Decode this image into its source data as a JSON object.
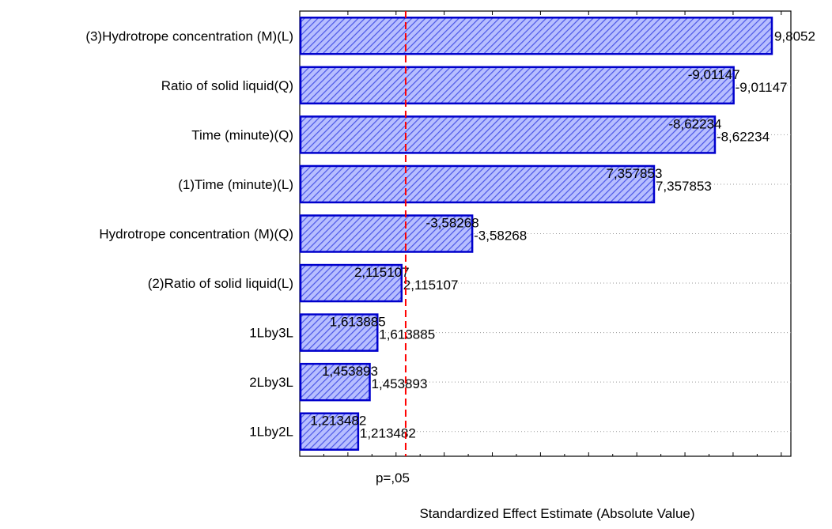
{
  "chart_data": {
    "type": "bar",
    "orientation": "horizontal",
    "title": "",
    "xlabel": "Standardized Effect Estimate (Absolute Value)",
    "ylabel": "",
    "xlim": [
      0,
      10.2
    ],
    "grid": true,
    "legend": "none",
    "bar_color": "#0000cc",
    "bar_fill_color": "#9fa8ff",
    "threshold": {
      "label": "p=,05",
      "value": 2.2,
      "color": "#ff0000"
    },
    "categories": [
      "(3)Hydrotrope concentration (M)(L)",
      "Ratio of solid liquid(Q)",
      "Time (minute)(Q)",
      "(1)Time (minute)(L)",
      "Hydrotrope concentration (M)(Q)",
      "(2)Ratio of solid liquid(L)",
      "1Lby3L",
      "2Lby3L",
      "1Lby2L"
    ],
    "values": [
      9.8052,
      9.01147,
      8.62234,
      7.357853,
      3.58268,
      2.115107,
      1.613885,
      1.453893,
      1.213482
    ],
    "data_labels_primary": [
      "9,8052",
      "-9,01147",
      "-8,62234",
      "7,357853",
      "-3,58268",
      "2,115107",
      "1,613885",
      "1,453893",
      "1,213482"
    ],
    "data_labels_secondary": [
      "",
      "-9,01147",
      "-8,62234",
      "7,357853",
      "-3,58268",
      "2,115107",
      "1,613885",
      "1,453893",
      "1,213482"
    ]
  }
}
